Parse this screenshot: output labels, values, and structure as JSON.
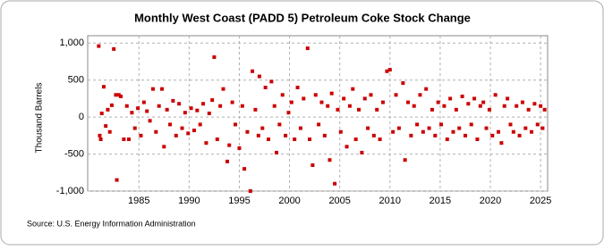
{
  "chart_data": {
    "type": "scatter",
    "title": "Monthly West Coast (PADD 5) Petroleum Coke Stock Change",
    "y_label": "Thousand Barrels",
    "source": "Source: U.S. Energy Information Administration",
    "color": "#cc0000",
    "grid": true,
    "xlim": [
      1979.9,
      2025.7
    ],
    "ylim": [
      -1000,
      1100
    ],
    "xticks": [
      1985,
      1990,
      1995,
      2000,
      2005,
      2010,
      2015,
      2020,
      2025
    ],
    "yticks": [
      {
        "value": -1000,
        "label": "-1,000"
      },
      -500,
      0,
      500,
      {
        "value": 1000,
        "label": "1,000"
      }
    ],
    "series": [
      {
        "name": "Stock Change",
        "x": [
          1981.0,
          1981.1,
          1981.2,
          1981.3,
          1981.5,
          1981.7,
          1981.9,
          1982.1,
          1982.3,
          1982.5,
          1982.7,
          1982.8,
          1983.0,
          1983.2,
          1983.5,
          1983.8,
          1984.0,
          1984.3,
          1984.6,
          1984.9,
          1985.2,
          1985.5,
          1985.8,
          1986.1,
          1986.4,
          1986.7,
          1987.0,
          1987.3,
          1987.5,
          1987.8,
          1988.1,
          1988.4,
          1988.7,
          1989.0,
          1989.3,
          1989.6,
          1989.9,
          1990.2,
          1990.5,
          1990.8,
          1991.1,
          1991.4,
          1991.7,
          1992.0,
          1992.3,
          1992.5,
          1992.8,
          1993.1,
          1993.4,
          1993.8,
          1994.0,
          1994.3,
          1994.6,
          1995.0,
          1995.3,
          1995.5,
          1995.8,
          1996.1,
          1996.3,
          1996.6,
          1996.9,
          1997.0,
          1997.3,
          1997.6,
          1997.9,
          1998.2,
          1998.5,
          1998.7,
          1999.0,
          1999.3,
          1999.6,
          1999.9,
          2000.2,
          2000.5,
          2000.8,
          2001.1,
          2001.4,
          2001.8,
          2002.0,
          2002.3,
          2002.6,
          2002.9,
          2003.2,
          2003.5,
          2003.8,
          2004.0,
          2004.2,
          2004.5,
          2004.8,
          2005.1,
          2005.4,
          2005.7,
          2006.0,
          2006.3,
          2006.6,
          2006.9,
          2007.2,
          2007.5,
          2007.8,
          2008.1,
          2008.4,
          2008.7,
          2009.0,
          2009.3,
          2009.7,
          2010.0,
          2010.3,
          2010.6,
          2010.9,
          2011.3,
          2011.5,
          2011.8,
          2012.1,
          2012.4,
          2012.7,
          2013.0,
          2013.3,
          2013.6,
          2013.9,
          2014.2,
          2014.5,
          2014.8,
          2015.1,
          2015.4,
          2015.7,
          2016.0,
          2016.3,
          2016.6,
          2016.9,
          2017.2,
          2017.5,
          2017.8,
          2018.1,
          2018.4,
          2018.7,
          2019.0,
          2019.3,
          2019.6,
          2019.9,
          2020.2,
          2020.5,
          2020.8,
          2021.1,
          2021.4,
          2021.7,
          2022.0,
          2022.3,
          2022.6,
          2022.9,
          2023.2,
          2023.5,
          2023.8,
          2024.1,
          2024.4,
          2024.7,
          2025.0,
          2025.2,
          2025.4
        ],
        "values": [
          960,
          -250,
          -300,
          50,
          410,
          -120,
          100,
          -200,
          160,
          920,
          300,
          -850,
          300,
          280,
          -300,
          150,
          -300,
          60,
          -150,
          120,
          -250,
          200,
          80,
          -50,
          380,
          -200,
          150,
          380,
          -400,
          100,
          -100,
          220,
          -250,
          180,
          -150,
          60,
          -220,
          120,
          -180,
          90,
          -100,
          180,
          -350,
          50,
          230,
          810,
          -300,
          150,
          380,
          -600,
          -380,
          200,
          -100,
          -420,
          150,
          -700,
          -200,
          -1000,
          620,
          100,
          -250,
          550,
          -150,
          400,
          -300,
          480,
          150,
          -480,
          -100,
          300,
          -250,
          60,
          200,
          -300,
          400,
          -150,
          250,
          930,
          -300,
          -650,
          300,
          -100,
          200,
          -250,
          150,
          -580,
          320,
          -900,
          100,
          -200,
          250,
          -400,
          150,
          380,
          -300,
          100,
          -480,
          250,
          -150,
          300,
          -250,
          100,
          -300,
          200,
          620,
          640,
          -200,
          300,
          -150,
          460,
          -580,
          200,
          -250,
          150,
          -100,
          300,
          -200,
          380,
          -150,
          100,
          -250,
          200,
          -100,
          150,
          -300,
          250,
          -200,
          100,
          -150,
          280,
          -250,
          180,
          -100,
          250,
          -300,
          150,
          200,
          -150,
          100,
          -250,
          300,
          -200,
          -350,
          150,
          250,
          -100,
          -200,
          150,
          -250,
          200,
          -150,
          100,
          -200,
          180,
          -100,
          150,
          -150,
          100
        ]
      }
    ]
  }
}
